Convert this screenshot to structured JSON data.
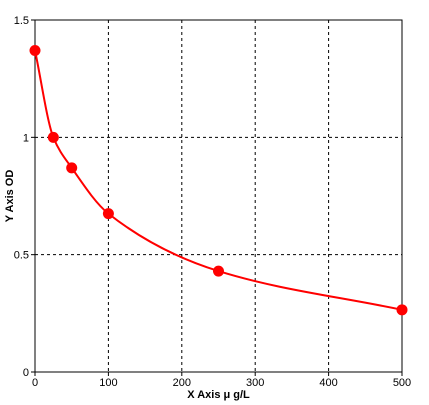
{
  "chart_data": {
    "type": "scatter",
    "title": "",
    "xlabel": "X Axis μ g/L",
    "ylabel": "Y Axis OD",
    "xlim": [
      0,
      500
    ],
    "ylim": [
      0,
      1.5
    ],
    "x_ticks": [
      0,
      100,
      200,
      300,
      400,
      500
    ],
    "x_tick_labels": [
      "0",
      "100",
      "200",
      "300",
      "400",
      "500"
    ],
    "y_ticks": [
      0,
      0.5,
      1,
      1.5
    ],
    "y_tick_labels": [
      "0",
      "0.5",
      "1",
      "1.5"
    ],
    "grid": true,
    "grid_style": "dashed",
    "series": [
      {
        "color": "#ff0000",
        "points": [
          {
            "x": 0,
            "y": 1.37
          },
          {
            "x": 25,
            "y": 1.0
          },
          {
            "x": 50,
            "y": 0.87
          },
          {
            "x": 100,
            "y": 0.675
          },
          {
            "x": 250,
            "y": 0.43
          },
          {
            "x": 500,
            "y": 0.265
          }
        ],
        "fit_curve": true
      }
    ]
  }
}
